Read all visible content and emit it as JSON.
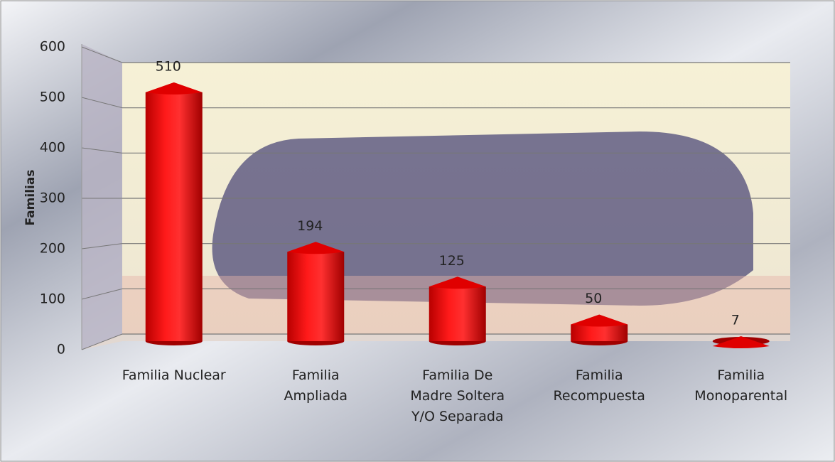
{
  "chart_data": {
    "type": "bar3d",
    "y_label": "Familias",
    "categories": [
      [
        "Familia Nuclear"
      ],
      [
        "Familia",
        "Ampliada"
      ],
      [
        "Familia De",
        "Madre Soltera",
        "Y/O Separada"
      ],
      [
        "Familia",
        "Recompuesta"
      ],
      [
        "Familia",
        "Monoparental"
      ]
    ],
    "values": [
      510,
      194,
      125,
      50,
      7
    ],
    "color": "#ff0000",
    "ylim": [
      0,
      600
    ],
    "yticks": [
      0,
      100,
      200,
      300,
      400,
      500,
      600
    ],
    "grid": true
  }
}
